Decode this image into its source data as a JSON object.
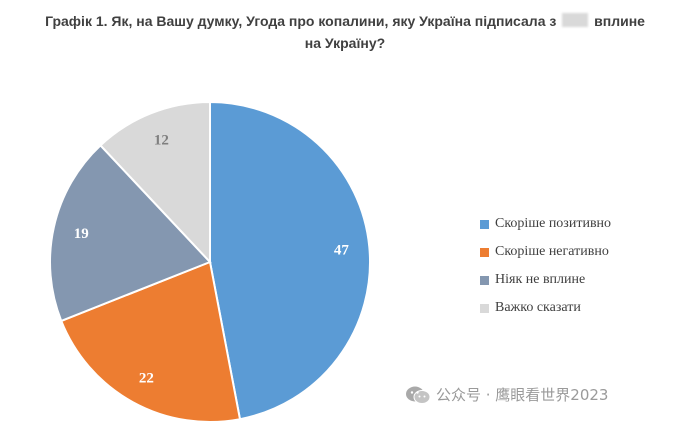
{
  "title": {
    "line1_start": "Графік 1. Як, на Вашу думку, Угода про копалини, яку Україна підписала з",
    "line1_end": "вплине",
    "line2": "на Україну?"
  },
  "watermark": {
    "text": "公众号 · 鹰眼看世界2023",
    "icon": "wechat-logo-icon"
  },
  "chart_data": {
    "type": "pie",
    "title": "Графік 1. Як, на Вашу думку, Угода про копалини, яку Україна підписала з … вплине на Україну?",
    "categories": [
      "Скоріше позитивно",
      "Скоріше негативно",
      "Ніяк не вплине",
      "Важко сказати"
    ],
    "values": [
      47,
      22,
      19,
      12
    ],
    "colors": [
      "#5b9bd5",
      "#ed7d31",
      "#8497b0",
      "#d9d9d9"
    ],
    "label_colors": [
      "#ffffff",
      "#ffffff",
      "#ffffff",
      "#7f7f7f"
    ],
    "legend_position": "right",
    "start_angle": "12 o'clock",
    "direction": "clockwise"
  }
}
